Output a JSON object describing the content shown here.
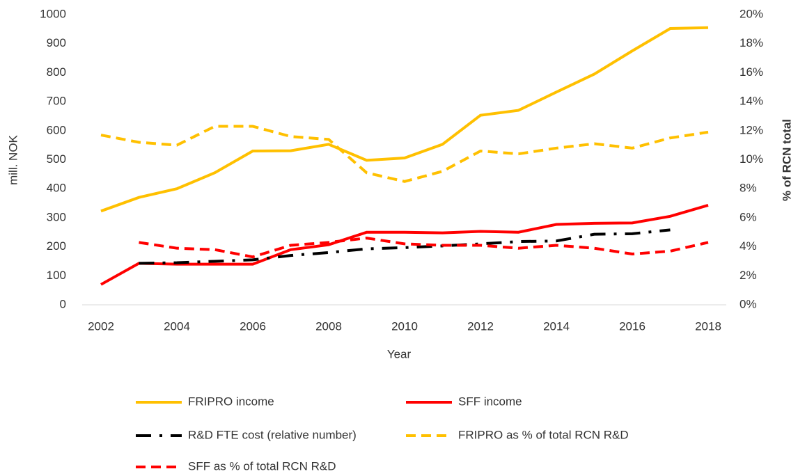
{
  "chart_data": {
    "type": "line",
    "xlabel": "Year",
    "ylabel": "mill. NOK",
    "y2label": "% of RCN total",
    "x": [
      2002,
      2003,
      2004,
      2005,
      2006,
      2007,
      2008,
      2009,
      2010,
      2011,
      2012,
      2013,
      2014,
      2015,
      2016,
      2017,
      2018
    ],
    "xlim": [
      2002,
      2018
    ],
    "xticks": [
      2002,
      2004,
      2006,
      2008,
      2010,
      2012,
      2014,
      2016,
      2018
    ],
    "ylim": [
      0,
      1000
    ],
    "yticks": [
      0,
      100,
      200,
      300,
      400,
      500,
      600,
      700,
      800,
      900,
      1000
    ],
    "y2lim": [
      0,
      20
    ],
    "y2ticks": [
      {
        "value": 0,
        "label": "0%"
      },
      {
        "value": 2,
        "label": "2%"
      },
      {
        "value": 4,
        "label": "4%"
      },
      {
        "value": 6,
        "label": "6%"
      },
      {
        "value": 8,
        "label": "8%"
      },
      {
        "value": 10,
        "label": "10%"
      },
      {
        "value": 12,
        "label": "12%"
      },
      {
        "value": 14,
        "label": "14%"
      },
      {
        "value": 16,
        "label": "16%"
      },
      {
        "value": 18,
        "label": "18%"
      },
      {
        "value": 20,
        "label": "20%"
      }
    ],
    "grid": false,
    "legend": "bottom",
    "series": [
      {
        "name": "FRIPRO income",
        "color": "#ffc000",
        "style": "solid",
        "values": [
          323,
          370,
          400,
          455,
          530,
          531,
          553,
          498,
          506,
          553,
          653,
          670,
          733,
          795,
          875,
          952,
          955
        ]
      },
      {
        "name": "SFF income",
        "color": "#ff0000",
        "style": "solid",
        "values": [
          70,
          143,
          140,
          140,
          140,
          190,
          207,
          250,
          250,
          248,
          253,
          250,
          277,
          281,
          282,
          305,
          343
        ]
      },
      {
        "name": "R&D FTE cost (relative number)",
        "color": "#000000",
        "style": "dashdot",
        "values": [
          null,
          143,
          145,
          150,
          155,
          170,
          180,
          193,
          197,
          203,
          210,
          218,
          220,
          243,
          245,
          258,
          null
        ]
      },
      {
        "name": "FRIPRO as % of total RCN R&D",
        "color": "#ffc000",
        "style": "dashed",
        "axis": "y2",
        "values": [
          11.7,
          11.2,
          11.0,
          12.3,
          12.3,
          11.6,
          11.4,
          9.1,
          8.5,
          9.2,
          10.6,
          10.4,
          10.8,
          11.1,
          10.8,
          11.5,
          11.9
        ]
      },
      {
        "name": "SFF as % of total RCN R&D",
        "color": "#ff0000",
        "style": "dashed",
        "axis": "y2",
        "values": [
          null,
          4.3,
          3.9,
          3.8,
          3.3,
          4.1,
          4.3,
          4.6,
          4.2,
          4.1,
          4.1,
          3.9,
          4.1,
          3.9,
          3.5,
          3.7,
          4.3
        ]
      }
    ]
  }
}
